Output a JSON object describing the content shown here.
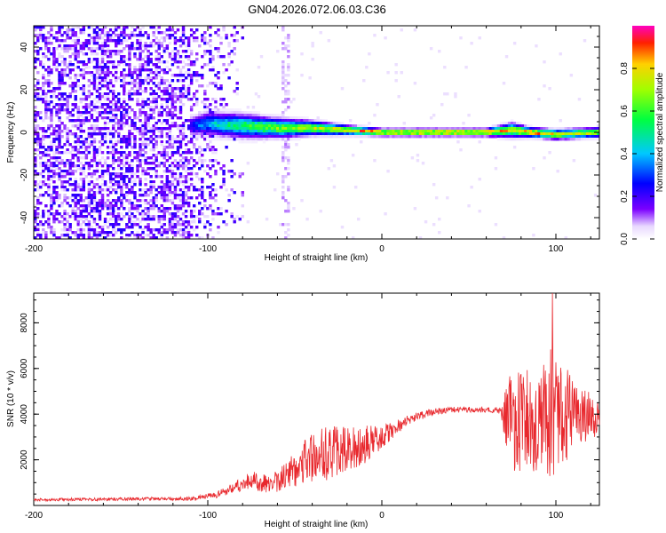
{
  "title": "GN04.2026.072.06.03.C36",
  "chart_data": [
    {
      "type": "heatmap",
      "xlabel": "Height of straight line (km)",
      "ylabel": "Frequency (Hz)",
      "xlim": [
        -200,
        125
      ],
      "ylim": [
        -50,
        50
      ],
      "x_ticks": [
        -200,
        -100,
        0,
        100
      ],
      "x_tick_labels": [
        "-200",
        "-100",
        "0",
        "100"
      ],
      "y_ticks": [
        -40,
        -20,
        0,
        20,
        40
      ],
      "y_tick_labels": [
        "-40",
        "-20",
        "0",
        "20",
        "40"
      ],
      "colorbar": {
        "label": "Normalized spectral amplitude",
        "range": [
          0,
          1
        ],
        "ticks": [
          0.0,
          0.2,
          0.4,
          0.6,
          0.8
        ],
        "tick_labels": [
          "0.0",
          "0.2",
          "0.4",
          "0.6",
          "0.8"
        ]
      },
      "noise_region": {
        "x_from": -200,
        "x_to": -80,
        "amplitude": 0.15
      },
      "signal_band": {
        "x": [
          -110,
          -100,
          -80,
          -60,
          -40,
          -20,
          0,
          20,
          40,
          60,
          75,
          85,
          100,
          125
        ],
        "center_hz": [
          3,
          4,
          3,
          2,
          2,
          1,
          0,
          0,
          0,
          0,
          1,
          0,
          -1,
          0
        ],
        "half_width_hz": [
          4,
          5,
          5,
          4,
          3,
          2,
          1.5,
          1.5,
          1.5,
          1.5,
          3,
          2,
          2,
          2
        ],
        "peak_amplitude": [
          0.25,
          0.4,
          0.55,
          0.65,
          0.7,
          0.8,
          0.85,
          0.88,
          0.88,
          0.88,
          0.75,
          0.85,
          0.8,
          0.7
        ]
      }
    },
    {
      "type": "line",
      "xlabel": "Height of straight line (km)",
      "ylabel": "SNR (10 * v/v)",
      "xlim": [
        -200,
        125
      ],
      "ylim": [
        0,
        9300
      ],
      "x_ticks": [
        -200,
        -100,
        0,
        100
      ],
      "x_tick_labels": [
        "-200",
        "-100",
        "0",
        "100"
      ],
      "y_ticks": [
        2000,
        4000,
        6000,
        8000
      ],
      "y_tick_labels": [
        "2000",
        "4000",
        "6000",
        "8000"
      ],
      "series": [
        {
          "name": "SNR",
          "color": "#e8282d",
          "envelope_x": [
            -200,
            -150,
            -110,
            -95,
            -85,
            -75,
            -65,
            -55,
            -45,
            -35,
            -25,
            -15,
            -5,
            0,
            10,
            20,
            30,
            40,
            50,
            60,
            68,
            72,
            80,
            90,
            95,
            100,
            110,
            125
          ],
          "envelope_mean": [
            250,
            280,
            300,
            450,
            800,
            1100,
            900,
            1300,
            2000,
            2200,
            2400,
            2500,
            2800,
            3000,
            3500,
            3900,
            4100,
            4200,
            4200,
            4200,
            4150,
            3800,
            3500,
            3600,
            4000,
            4000,
            4000,
            3900
          ],
          "envelope_spread": [
            60,
            70,
            80,
            150,
            250,
            400,
            450,
            600,
            1100,
            1200,
            1100,
            1000,
            700,
            500,
            300,
            200,
            150,
            120,
            120,
            120,
            150,
            1800,
            2500,
            2800,
            2900,
            3000,
            1500,
            800
          ],
          "peak": {
            "x": 98,
            "y": 9300
          }
        }
      ]
    }
  ]
}
